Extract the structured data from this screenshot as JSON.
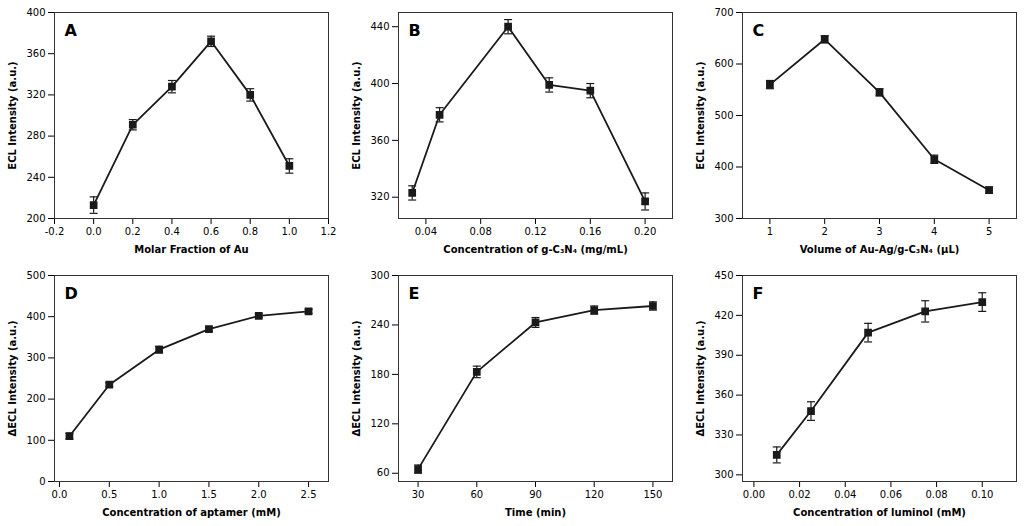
{
  "chart_data": [
    {
      "type": "line",
      "title": "A",
      "xlabel": "Molar Fraction of Au",
      "ylabel": "ECL Intensity (a.u.)",
      "x": [
        0.0,
        0.2,
        0.4,
        0.6,
        0.8,
        1.0
      ],
      "values": [
        213,
        291,
        328,
        372,
        320,
        251
      ],
      "yerr": [
        8,
        5,
        6,
        5,
        6,
        7
      ],
      "xlim": [
        -0.2,
        1.2
      ],
      "ylim": [
        200,
        400
      ],
      "xticks": [
        -0.2,
        {
          "value": 0.0,
          "label": "0.0"
        },
        0.2,
        0.4,
        0.6,
        0.8,
        {
          "value": 1.0,
          "label": "1.0"
        },
        1.2
      ],
      "yticks": [
        200,
        240,
        280,
        320,
        360,
        400
      ],
      "color": "#1a1a1a",
      "marker": "square"
    },
    {
      "type": "line",
      "title": "B",
      "xlabel": "Concentration of g-C₃N₄ (mg/mL)",
      "ylabel": "ECL Intensity (a.u.)",
      "x": [
        0.03,
        0.05,
        0.1,
        0.13,
        0.16,
        0.2
      ],
      "values": [
        323,
        378,
        440,
        399,
        395,
        317
      ],
      "yerr": [
        5,
        5,
        5,
        5,
        5,
        6
      ],
      "xlim": [
        0.02,
        0.22
      ],
      "ylim": [
        305,
        450
      ],
      "xticks": [
        0.04,
        0.08,
        0.12,
        0.16,
        {
          "value": 0.2,
          "label": "0.20"
        }
      ],
      "yticks": [
        320,
        360,
        400,
        440
      ],
      "color": "#1a1a1a",
      "marker": "square"
    },
    {
      "type": "line",
      "title": "C",
      "xlabel": "Volume of Au-Ag/g-C₃N₄ (μL)",
      "ylabel": "ECL Intensity (a.u.)",
      "x": [
        1,
        2,
        3,
        4,
        5
      ],
      "values": [
        560,
        648,
        545,
        415,
        355
      ],
      "yerr": [
        8,
        7,
        7,
        8,
        6
      ],
      "xlim": [
        0.5,
        5.5
      ],
      "ylim": [
        300,
        700
      ],
      "xticks": [
        1,
        2,
        3,
        4,
        5
      ],
      "yticks": [
        300,
        400,
        500,
        600,
        700
      ],
      "color": "#1a1a1a",
      "marker": "square"
    },
    {
      "type": "line",
      "title": "D",
      "xlabel": "Concentration of aptamer (mM)",
      "ylabel": "ΔECL Intensity (a.u.)",
      "x": [
        0.1,
        0.5,
        1.0,
        1.5,
        2.0,
        2.5
      ],
      "values": [
        110,
        235,
        320,
        370,
        402,
        413
      ],
      "yerr": [
        7,
        5,
        8,
        5,
        5,
        5
      ],
      "xlim": [
        -0.05,
        2.7
      ],
      "ylim": [
        0,
        500
      ],
      "xticks": [
        {
          "value": 0.0,
          "label": "0.0"
        },
        0.5,
        {
          "value": 1.0,
          "label": "1.0"
        },
        1.5,
        {
          "value": 2.0,
          "label": "2.0"
        },
        2.5
      ],
      "yticks": [
        0,
        100,
        200,
        300,
        400,
        500
      ],
      "color": "#1a1a1a",
      "marker": "square"
    },
    {
      "type": "line",
      "title": "E",
      "xlabel": "Time (min)",
      "ylabel": "ΔECL Intensity (a.u.)",
      "x": [
        30,
        60,
        90,
        120,
        150
      ],
      "values": [
        65,
        183,
        243,
        258,
        263
      ],
      "yerr": [
        5,
        7,
        6,
        5,
        5
      ],
      "xlim": [
        20,
        160
      ],
      "ylim": [
        50,
        300
      ],
      "xticks": [
        30,
        60,
        90,
        120,
        150
      ],
      "yticks": [
        60,
        120,
        180,
        240,
        300
      ],
      "color": "#1a1a1a",
      "marker": "square"
    },
    {
      "type": "line",
      "title": "F",
      "xlabel": "Concentration of luminol (mM)",
      "ylabel": "ΔECL Intensity (a.u.)",
      "x": [
        0.01,
        0.025,
        0.05,
        0.075,
        0.1
      ],
      "values": [
        315,
        348,
        407,
        423,
        430
      ],
      "yerr": [
        6,
        7,
        7,
        8,
        7
      ],
      "xlim": [
        -0.005,
        0.115
      ],
      "ylim": [
        295,
        450
      ],
      "xticks": [
        {
          "value": 0.0,
          "label": "0.00"
        },
        0.02,
        0.04,
        0.06,
        0.08,
        {
          "value": 0.1,
          "label": "0.10"
        }
      ],
      "yticks": [
        300,
        330,
        360,
        390,
        420,
        450
      ],
      "color": "#1a1a1a",
      "marker": "square"
    }
  ]
}
